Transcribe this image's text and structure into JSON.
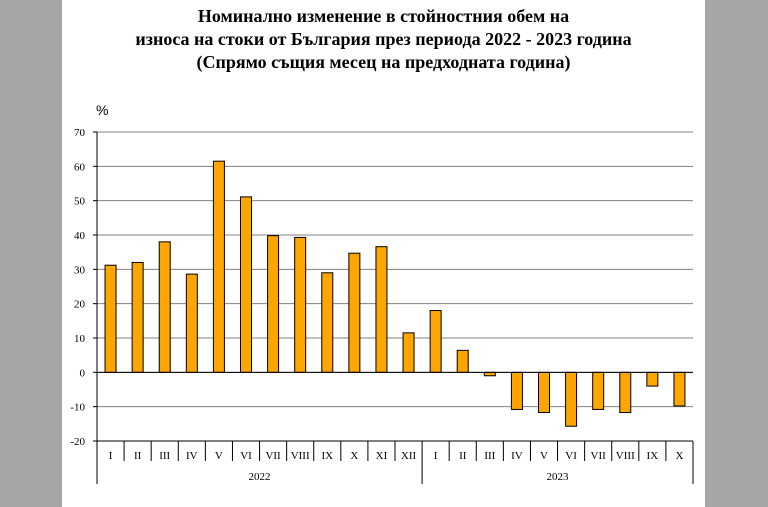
{
  "chart_data": {
    "type": "bar",
    "title_lines": [
      "Номинално изменение в стойностния обем на",
      "износа на стоки от България през периода 2022 - 2023 година",
      "(Спрямо същия месец на предходната година)"
    ],
    "ylabel": "%",
    "ylim": [
      -20,
      70
    ],
    "yticks": [
      -20,
      -10,
      0,
      10,
      20,
      30,
      40,
      50,
      60,
      70
    ],
    "grid": true,
    "bar_color": "#ffa500",
    "categories": [
      "I",
      "II",
      "III",
      "IV",
      "V",
      "VI",
      "VII",
      "VIII",
      "IX",
      "X",
      "XI",
      "XII",
      "I",
      "II",
      "III",
      "IV",
      "V",
      "VI",
      "VII",
      "VIII",
      "IX",
      "X"
    ],
    "groups": [
      {
        "label": "2022",
        "count": 12
      },
      {
        "label": "2023",
        "count": 10
      }
    ],
    "values": [
      31.2,
      32.0,
      38.0,
      28.6,
      61.5,
      51.1,
      39.8,
      39.3,
      29.0,
      34.7,
      36.6,
      11.5,
      18.0,
      6.4,
      -1.0,
      -10.8,
      -11.7,
      -15.7,
      -10.8,
      -11.7,
      -4.0,
      -9.8
    ]
  }
}
